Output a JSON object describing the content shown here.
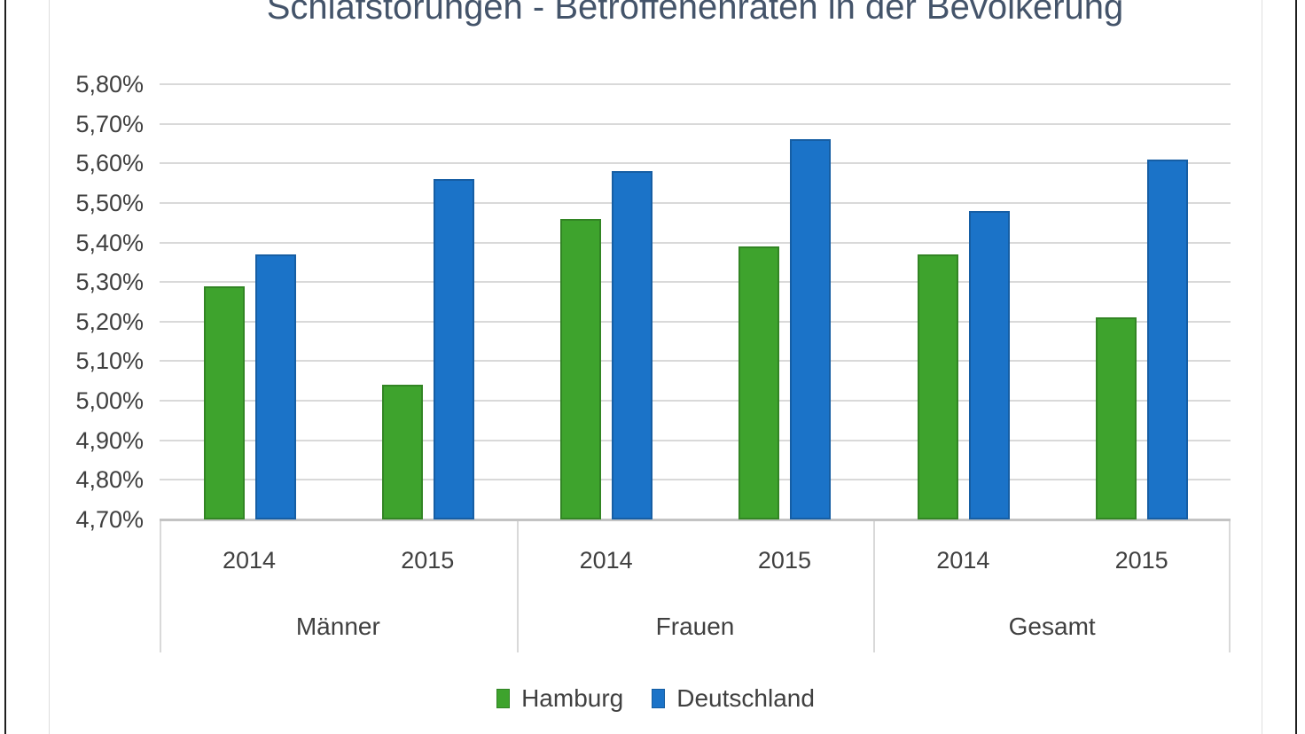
{
  "title": "Schlafstörungen - Betroffenenraten in der Bevölkerung",
  "colors": {
    "hamburg_green": "#3ea32d",
    "deutschland_blue": "#1b73c8",
    "gridline": "#d9d9d9",
    "axis_line": "#c3c3c3",
    "label_text": "#404040",
    "title_text": "#44546a",
    "outer_frame": "#1f1f1f",
    "chart_border": "#dedede"
  },
  "chart_data": {
    "type": "bar",
    "title": "Schlafstörungen - Betroffenenraten in der Bevölkerung",
    "unit": "%",
    "number_format": "de-DE",
    "groups": [
      "Männer",
      "Frauen",
      "Gesamt"
    ],
    "years": [
      "2014",
      "2015"
    ],
    "categories": [
      "Männer 2014",
      "Männer 2015",
      "Frauen 2014",
      "Frauen 2015",
      "Gesamt 2014",
      "Gesamt 2015"
    ],
    "series": [
      {
        "name": "Hamburg",
        "color": "#3ea32d",
        "values": [
          5.29,
          5.04,
          5.46,
          5.39,
          5.37,
          5.21
        ]
      },
      {
        "name": "Deutschland",
        "color": "#1b73c8",
        "values": [
          5.37,
          5.56,
          5.58,
          5.66,
          5.48,
          5.61
        ]
      }
    ],
    "y_axis": {
      "min": 4.7,
      "max": 5.8,
      "step": 0.1,
      "tick_labels": [
        "5,80%",
        "5,70%",
        "5,60%",
        "5,50%",
        "5,40%",
        "5,30%",
        "5,20%",
        "5,10%",
        "5,00%",
        "4,90%",
        "4,80%",
        "4,70%"
      ]
    },
    "grid": true,
    "legend": [
      "Hamburg",
      "Deutschland"
    ],
    "legend_position": "bottom"
  }
}
